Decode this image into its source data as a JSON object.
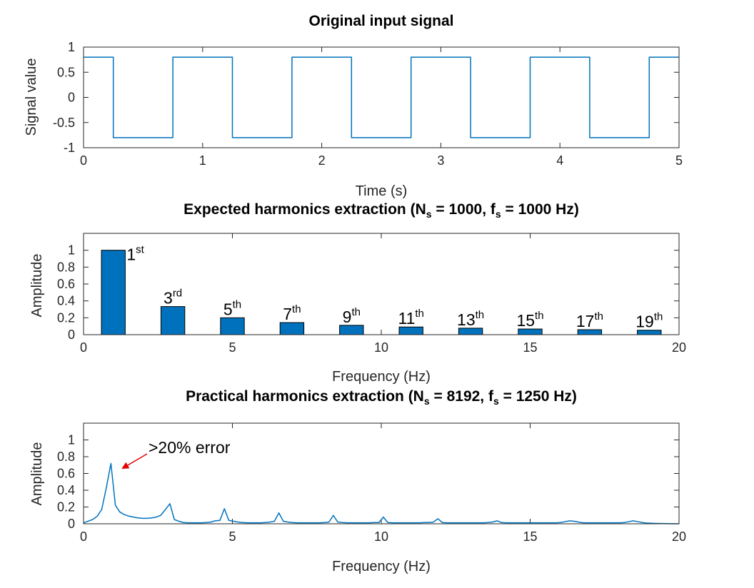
{
  "colors": {
    "series": "#0072BD",
    "bar_fill": "#0072BD",
    "arrow": "#E00000",
    "axis": "#262626"
  },
  "chart_data": [
    {
      "type": "line",
      "title": "Original input signal",
      "xlabel": "Time (s)",
      "ylabel": "Signal value",
      "xlim": [
        0,
        5
      ],
      "ylim": [
        -1,
        1
      ],
      "xticks": [
        "0",
        "1",
        "2",
        "3",
        "4",
        "5"
      ],
      "yticks": [
        "1",
        "0.5",
        "0",
        "-0.5",
        "-1"
      ],
      "grid": false,
      "series": [
        {
          "x": [
            0,
            0.25,
            0.25,
            0.75,
            0.75,
            1.25,
            1.25,
            1.75,
            1.75,
            2.25,
            2.25,
            2.75,
            2.75,
            3.25,
            3.25,
            3.75,
            3.75,
            4.25,
            4.25,
            4.75,
            4.75,
            5
          ],
          "y": [
            0.8,
            0.8,
            -0.8,
            -0.8,
            0.8,
            0.8,
            -0.8,
            -0.8,
            0.8,
            0.8,
            -0.8,
            -0.8,
            0.8,
            0.8,
            -0.8,
            -0.8,
            0.8,
            0.8,
            -0.8,
            -0.8,
            0.8,
            0.8
          ]
        }
      ]
    },
    {
      "type": "bar",
      "title": {
        "pre": "Expected harmonics extraction (N",
        "sub1": "s",
        "mid": " = 1000, f",
        "sub2": "s",
        "post": " = 1000 Hz)"
      },
      "xlabel": "Frequency (Hz)",
      "ylabel": "Amplitude",
      "xlim": [
        0,
        20
      ],
      "ylim": [
        0,
        1.2
      ],
      "xticks": [
        "0",
        "5",
        "10",
        "15",
        "20"
      ],
      "yticks": [
        "1",
        "0.8",
        "0.6",
        "0.4",
        "0.2",
        "0"
      ],
      "grid": false,
      "x": [
        1,
        3,
        5,
        7,
        9,
        11,
        13,
        15,
        17,
        19
      ],
      "values": [
        1.0,
        0.333,
        0.2,
        0.143,
        0.111,
        0.091,
        0.077,
        0.067,
        0.059,
        0.053
      ],
      "labels": [
        {
          "num": "1",
          "sup": "st"
        },
        {
          "num": "3",
          "sup": "rd"
        },
        {
          "num": "5",
          "sup": "th"
        },
        {
          "num": "7",
          "sup": "th"
        },
        {
          "num": "9",
          "sup": "th"
        },
        {
          "num": "11",
          "sup": "th"
        },
        {
          "num": "13",
          "sup": "th"
        },
        {
          "num": "15",
          "sup": "th"
        },
        {
          "num": "17",
          "sup": "th"
        },
        {
          "num": "19",
          "sup": "th"
        }
      ]
    },
    {
      "type": "line",
      "title": {
        "pre": "Practical harmonics extraction (N",
        "sub1": "s",
        "mid": " = 8192, f",
        "sub2": "s",
        "post": " = 1250 Hz)"
      },
      "xlabel": "Frequency (Hz)",
      "ylabel": "Amplitude",
      "xlim": [
        0,
        20
      ],
      "ylim": [
        0,
        1.2
      ],
      "xticks": [
        "0",
        "5",
        "10",
        "15",
        "20"
      ],
      "yticks": [
        "1",
        "0.8",
        "0.6",
        "0.4",
        "0.2",
        "0"
      ],
      "grid": false,
      "annotation": {
        "text": ">20% error",
        "x": 1.0,
        "y": 0.72
      },
      "series": [
        {
          "x": [
            0,
            0.15,
            0.3,
            0.46,
            0.61,
            0.76,
            0.92,
            1.07,
            1.22,
            1.37,
            1.53,
            1.68,
            1.83,
            1.98,
            2.14,
            2.29,
            2.44,
            2.59,
            2.75,
            2.9,
            3.05,
            3.2,
            3.36,
            3.51,
            3.66,
            3.81,
            3.97,
            4.12,
            4.27,
            4.42,
            4.58,
            4.73,
            4.88,
            5.04,
            5.19,
            5.34,
            5.49,
            5.65,
            5.8,
            5.95,
            6.1,
            6.26,
            6.41,
            6.56,
            6.71,
            6.87,
            7.02,
            7.17,
            7.32,
            7.48,
            7.63,
            7.78,
            7.93,
            8.09,
            8.24,
            8.39,
            8.54,
            8.7,
            8.85,
            9.0,
            9.16,
            9.31,
            9.46,
            9.61,
            9.77,
            9.92,
            10.07,
            10.22,
            10.38,
            10.53,
            10.68,
            10.83,
            10.99,
            11.14,
            11.29,
            11.44,
            11.6,
            11.75,
            11.9,
            12.05,
            12.21,
            12.36,
            12.51,
            12.66,
            12.82,
            12.97,
            13.12,
            13.28,
            13.43,
            13.58,
            13.73,
            13.89,
            14.04,
            14.19,
            14.34,
            14.5,
            14.65,
            14.8,
            14.95,
            15.11,
            15.26,
            15.41,
            15.56,
            15.72,
            15.87,
            16.02,
            16.17,
            16.33,
            16.48,
            16.63,
            16.78,
            16.94,
            17.09,
            17.24,
            17.4,
            17.55,
            17.7,
            17.85,
            18.01,
            18.16,
            18.31,
            18.46,
            18.62,
            18.77,
            18.92,
            19.07,
            19.23,
            19.38,
            19.53,
            19.68,
            19.84,
            20.0
          ],
          "y": [
            0.01,
            0.03,
            0.05,
            0.09,
            0.17,
            0.42,
            0.72,
            0.22,
            0.14,
            0.11,
            0.09,
            0.08,
            0.07,
            0.065,
            0.065,
            0.07,
            0.08,
            0.1,
            0.17,
            0.24,
            0.05,
            0.03,
            0.015,
            0.012,
            0.012,
            0.012,
            0.012,
            0.015,
            0.02,
            0.035,
            0.04,
            0.18,
            0.04,
            0.03,
            0.02,
            0.015,
            0.012,
            0.012,
            0.012,
            0.012,
            0.015,
            0.02,
            0.03,
            0.13,
            0.03,
            0.02,
            0.015,
            0.012,
            0.012,
            0.012,
            0.012,
            0.012,
            0.012,
            0.015,
            0.02,
            0.1,
            0.02,
            0.015,
            0.012,
            0.012,
            0.012,
            0.012,
            0.012,
            0.012,
            0.015,
            0.015,
            0.08,
            0.015,
            0.012,
            0.012,
            0.012,
            0.012,
            0.012,
            0.012,
            0.012,
            0.015,
            0.015,
            0.02,
            0.06,
            0.015,
            0.012,
            0.012,
            0.012,
            0.012,
            0.012,
            0.012,
            0.012,
            0.012,
            0.012,
            0.015,
            0.02,
            0.035,
            0.015,
            0.012,
            0.012,
            0.012,
            0.012,
            0.012,
            0.012,
            0.012,
            0.012,
            0.012,
            0.012,
            0.012,
            0.012,
            0.015,
            0.025,
            0.035,
            0.03,
            0.02,
            0.012,
            0.012,
            0.012,
            0.012,
            0.012,
            0.012,
            0.012,
            0.012,
            0.012,
            0.015,
            0.025,
            0.035,
            0.025,
            0.015,
            0.008,
            0.006,
            0.004,
            0.003,
            0.002,
            0.001,
            0.001,
            0.0
          ]
        }
      ]
    }
  ]
}
